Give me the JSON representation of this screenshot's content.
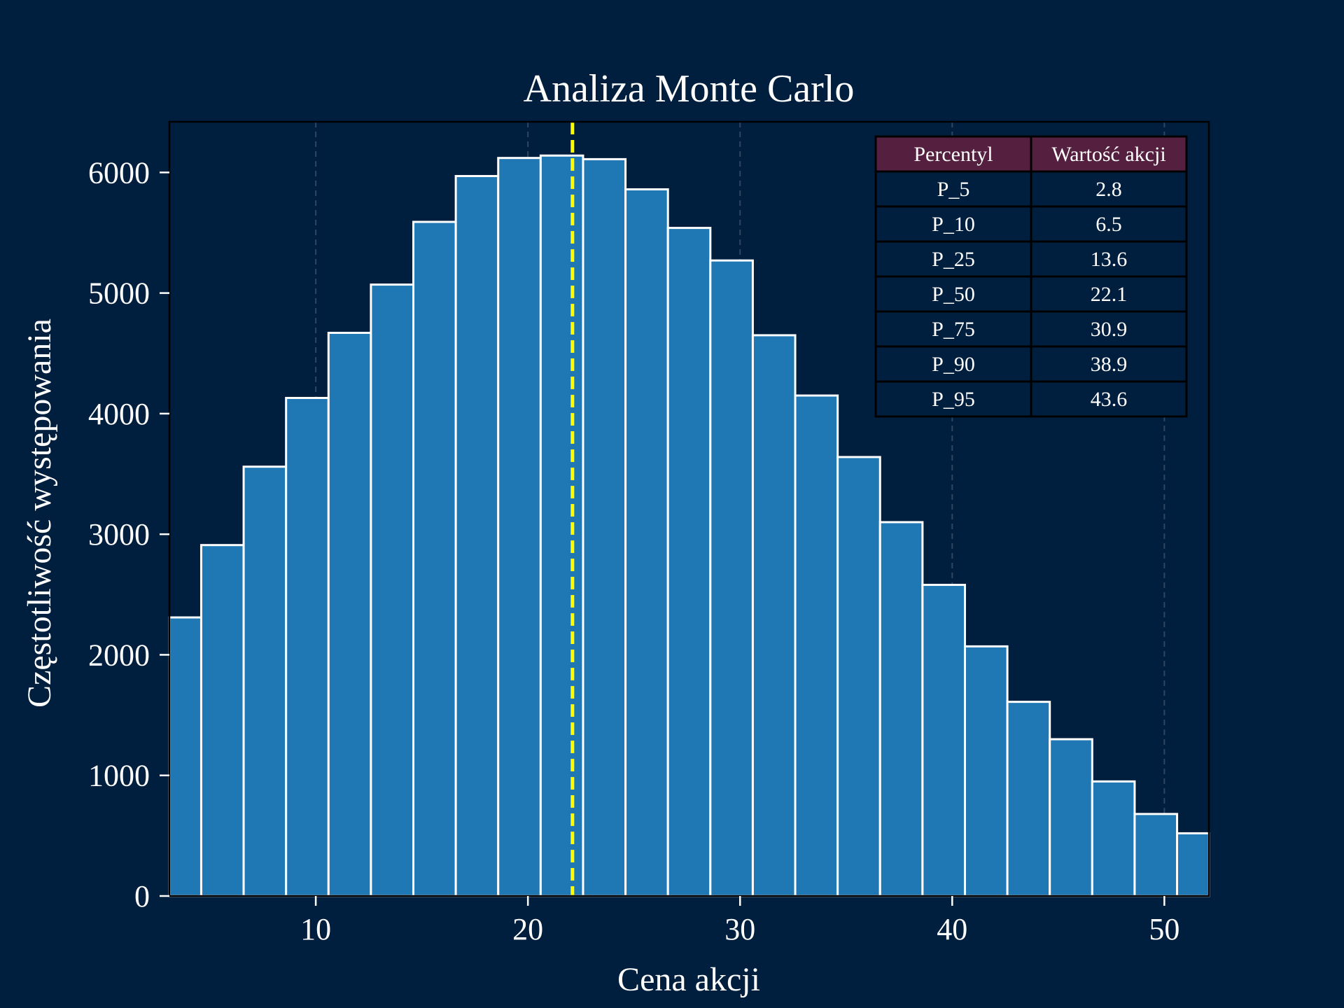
{
  "chart_data": {
    "type": "bar",
    "title": "Analiza Monte Carlo",
    "xlabel": "Cena akcji",
    "ylabel": "Częstotliwość występowania",
    "xlim": [
      3.1,
      52.1
    ],
    "ylim": [
      0,
      6420
    ],
    "xticks": [
      10,
      20,
      30,
      40,
      50
    ],
    "yticks": [
      0,
      1000,
      2000,
      3000,
      4000,
      5000,
      6000
    ],
    "grid": "vertical-dashed",
    "bins": {
      "edges": [
        3.1,
        4.6,
        6.6,
        8.6,
        10.6,
        12.6,
        14.6,
        16.6,
        18.6,
        20.6,
        22.6,
        24.6,
        26.6,
        28.6,
        30.6,
        32.6,
        34.6,
        36.6,
        38.6,
        40.6,
        42.6,
        44.6,
        46.6,
        48.6,
        50.6,
        52.1
      ],
      "values": [
        2310,
        2910,
        3560,
        4130,
        4670,
        5070,
        5590,
        5970,
        6120,
        6140,
        6110,
        5860,
        5540,
        5270,
        4650,
        4150,
        3640,
        3100,
        2580,
        2070,
        1610,
        1300,
        950,
        680,
        520
      ]
    },
    "median_line": {
      "x": 22.1,
      "style": "dashed",
      "color": "#ffff00"
    },
    "colors": {
      "background": "#001f3f",
      "bar_fill": "#1f77b4",
      "bar_edge": "#ffffff",
      "grid": "#2e4660",
      "table_header": "#55203f",
      "table_border": "#000000"
    },
    "table": {
      "position": "top-right",
      "headers": [
        "Percentyl",
        "Wartość akcji"
      ],
      "rows": [
        [
          "P_5",
          "2.8"
        ],
        [
          "P_10",
          "6.5"
        ],
        [
          "P_25",
          "13.6"
        ],
        [
          "P_50",
          "22.1"
        ],
        [
          "P_75",
          "30.9"
        ],
        [
          "P_90",
          "38.9"
        ],
        [
          "P_95",
          "43.6"
        ]
      ]
    }
  }
}
